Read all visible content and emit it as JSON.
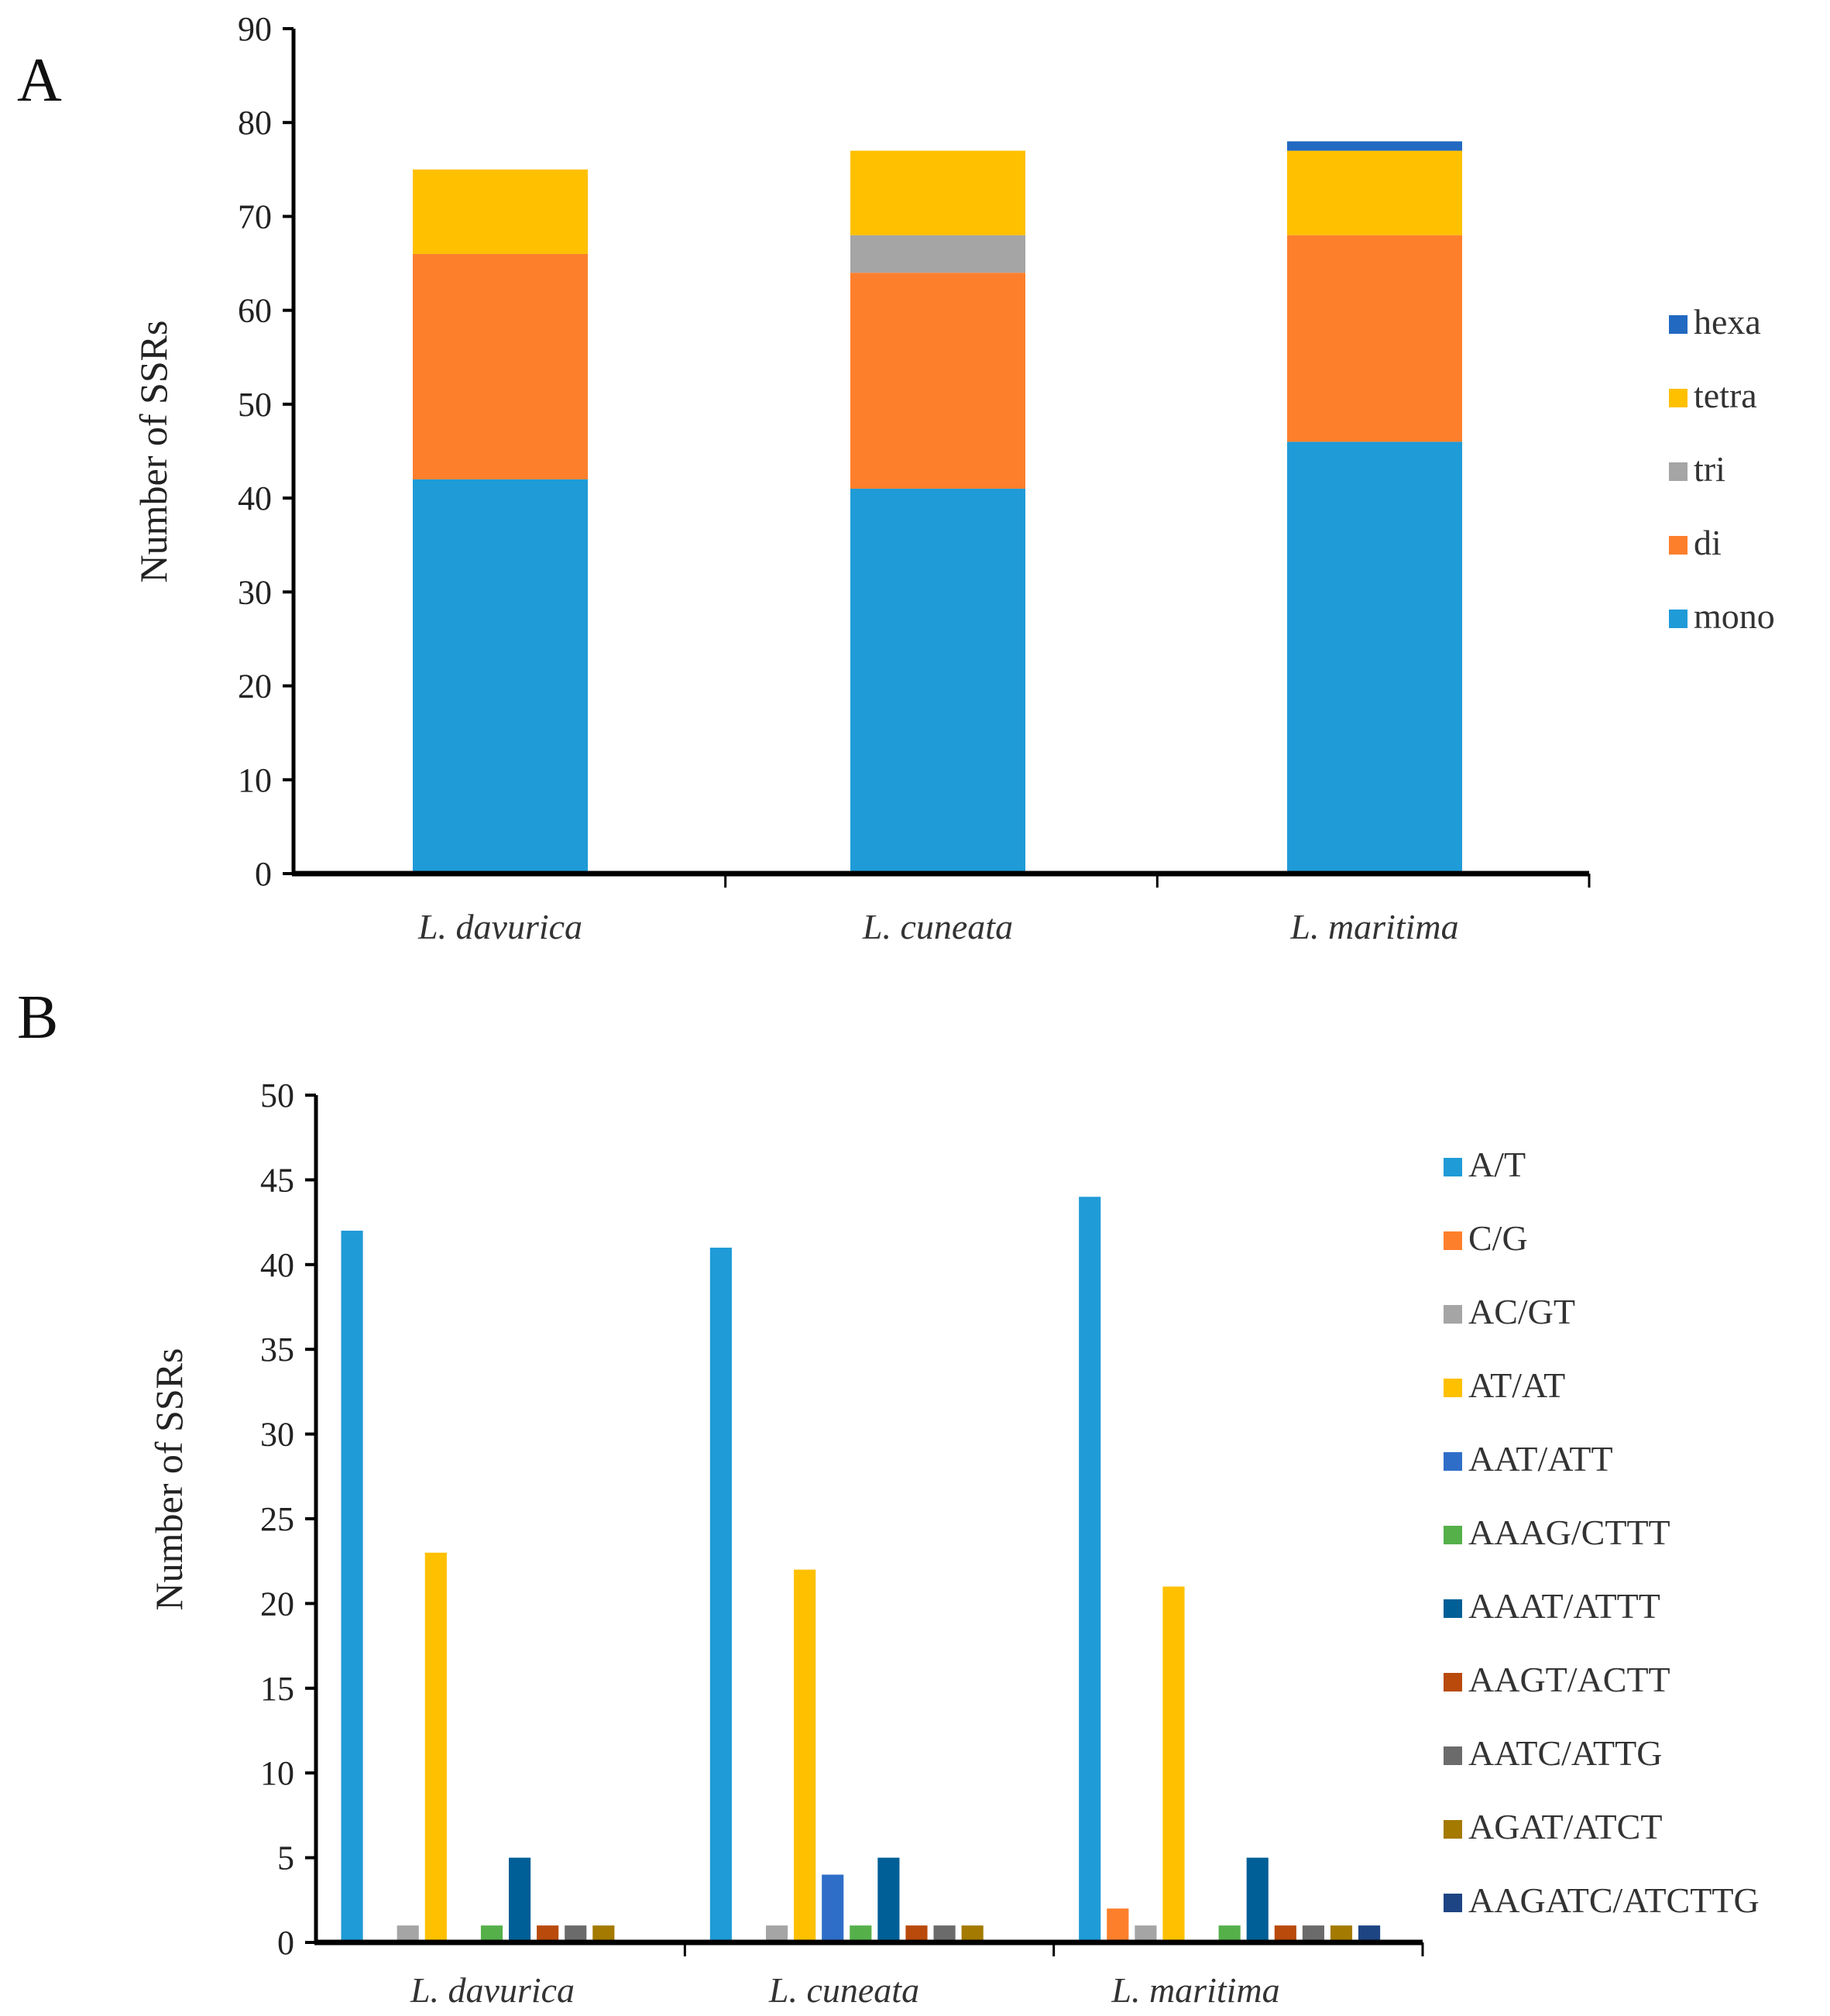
{
  "chart_data": [
    {
      "panel": "A",
      "type": "bar",
      "stacked": true,
      "categories": [
        "L. davurica",
        "L. cuneata",
        "L. maritima"
      ],
      "ylabel": "Number of SSRs",
      "xlabel": "",
      "ylim": [
        0,
        90
      ],
      "yticks": [
        0,
        10,
        20,
        30,
        40,
        50,
        60,
        70,
        80,
        90
      ],
      "legend_position": "right",
      "series": [
        {
          "name": "mono",
          "color": "#1f9bd7",
          "values": [
            42,
            41,
            46
          ]
        },
        {
          "name": "di",
          "color": "#fd7f2c",
          "values": [
            24,
            23,
            22
          ]
        },
        {
          "name": "tri",
          "color": "#a5a5a5",
          "values": [
            0,
            4,
            0
          ]
        },
        {
          "name": "tetra",
          "color": "#ffc000",
          "values": [
            9,
            9,
            9
          ]
        },
        {
          "name": "hexa",
          "color": "#2269c1",
          "values": [
            0,
            0,
            1
          ]
        }
      ]
    },
    {
      "panel": "B",
      "type": "bar",
      "stacked": false,
      "categories": [
        "L. davurica",
        "L. cuneata",
        "L. maritima"
      ],
      "ylabel": "Number of SSRs",
      "xlabel": "",
      "ylim": [
        0,
        50
      ],
      "yticks": [
        0,
        5,
        10,
        15,
        20,
        25,
        30,
        35,
        40,
        45,
        50
      ],
      "legend_position": "right",
      "series": [
        {
          "name": "A/T",
          "color": "#1f9bd7",
          "values": [
            42,
            41,
            44
          ]
        },
        {
          "name": "C/G",
          "color": "#fd7f2c",
          "values": [
            0,
            0,
            2
          ]
        },
        {
          "name": "AC/GT",
          "color": "#a5a5a5",
          "values": [
            1,
            1,
            1
          ]
        },
        {
          "name": "AT/AT",
          "color": "#ffc000",
          "values": [
            23,
            22,
            21
          ]
        },
        {
          "name": "AAT/ATT",
          "color": "#2f6ec8",
          "values": [
            0,
            4,
            0
          ]
        },
        {
          "name": "AAAG/CTTT",
          "color": "#55b04a",
          "values": [
            1,
            1,
            1
          ]
        },
        {
          "name": "AAAT/ATTT",
          "color": "#005f96",
          "values": [
            5,
            5,
            5
          ]
        },
        {
          "name": "AAGT/ACTT",
          "color": "#b94a0c",
          "values": [
            1,
            1,
            1
          ]
        },
        {
          "name": "AATC/ATTG",
          "color": "#6b6b6b",
          "values": [
            1,
            1,
            1
          ]
        },
        {
          "name": "AGAT/ATCT",
          "color": "#a47a00",
          "values": [
            1,
            1,
            1
          ]
        },
        {
          "name": "AAGATC/ATCTTG",
          "color": "#1d4583",
          "values": [
            0,
            0,
            1
          ]
        }
      ]
    }
  ]
}
